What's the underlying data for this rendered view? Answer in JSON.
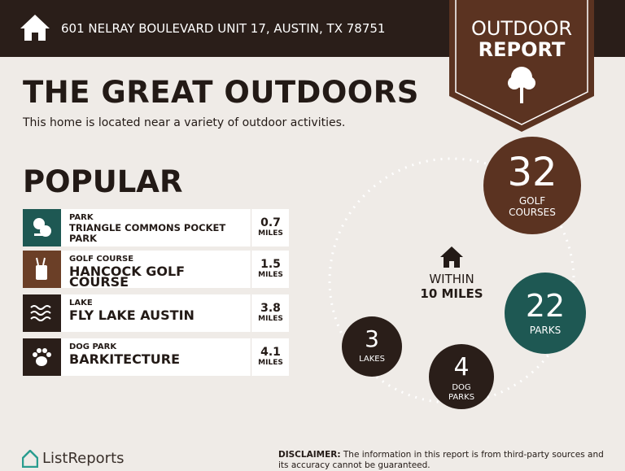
{
  "header": {
    "address": "601 NELRAY BOULEVARD UNIT 17, AUSTIN, TX 78751"
  },
  "badge": {
    "line1": "OUTDOOR",
    "line2": "REPORT"
  },
  "title": "THE GREAT OUTDOORS",
  "subtitle": "This home is located near a variety of outdoor activities.",
  "popular": {
    "heading": "POPULAR",
    "unit": "MILES",
    "items": [
      {
        "category": "PARK",
        "name": "TRIANGLE COMMONS POCKET PARK",
        "distance": 0.7
      },
      {
        "category": "GOLF COURSE",
        "name": "HANCOCK GOLF COURSE",
        "distance": 1.5
      },
      {
        "category": "LAKE",
        "name": "FLY LAKE AUSTIN",
        "distance": 3.8
      },
      {
        "category": "DOG PARK",
        "name": "BARKITECTURE",
        "distance": 4.1
      }
    ]
  },
  "radius": {
    "line1": "WITHIN",
    "line2": "10 MILES"
  },
  "counts": [
    {
      "value": 32,
      "label": "GOLF COURSES"
    },
    {
      "value": 22,
      "label": "PARKS"
    },
    {
      "value": 4,
      "label": "DOG PARKS"
    },
    {
      "value": 3,
      "label": "LAKES"
    }
  ],
  "footer": {
    "brand": "ListReports",
    "disclaimer_label": "DISCLAIMER:",
    "disclaimer": "The information in this report is from third-party sources and its accuracy cannot be guaranteed."
  }
}
